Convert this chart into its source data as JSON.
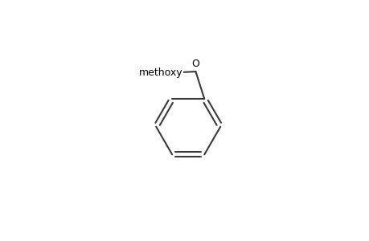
{
  "bg_color": "#ffffff",
  "line_color": "#3a3a3a",
  "text_color": "#000000",
  "lw": 1.5,
  "fs": 9.0,
  "fig_w": 4.6,
  "fig_h": 3.0,
  "dpi": 100
}
